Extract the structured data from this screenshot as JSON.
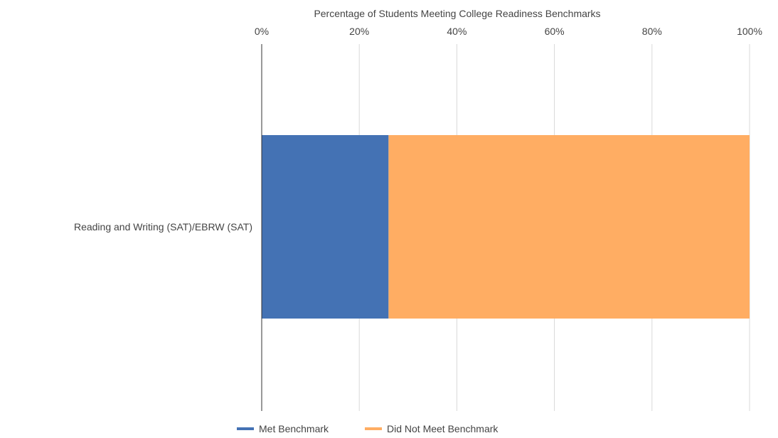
{
  "chart_data": {
    "type": "bar",
    "orientation": "horizontal",
    "stacked": true,
    "title": "Percentage of Students Meeting College Readiness Benchmarks",
    "xlabel": "Percentage of Students Meeting College Readiness Benchmarks",
    "ylabel": "",
    "xlim": [
      0,
      100
    ],
    "x_ticks": [
      "0%",
      "20%",
      "40%",
      "60%",
      "80%",
      "100%"
    ],
    "x_tick_values": [
      0,
      20,
      40,
      60,
      80,
      100
    ],
    "x_axis_position": "top",
    "grid": true,
    "legend_position": "bottom",
    "categories": [
      "Reading and Writing (SAT)/EBRW (SAT)"
    ],
    "series": [
      {
        "name": "Met Benchmark",
        "values": [
          26
        ],
        "color": "#4472b4"
      },
      {
        "name": "Did Not Meet Benchmark",
        "values": [
          74
        ],
        "color": "#ffad63"
      }
    ]
  },
  "colors": {
    "grid": "#d9d9d9",
    "axis": "#333333",
    "text": "#444444"
  }
}
